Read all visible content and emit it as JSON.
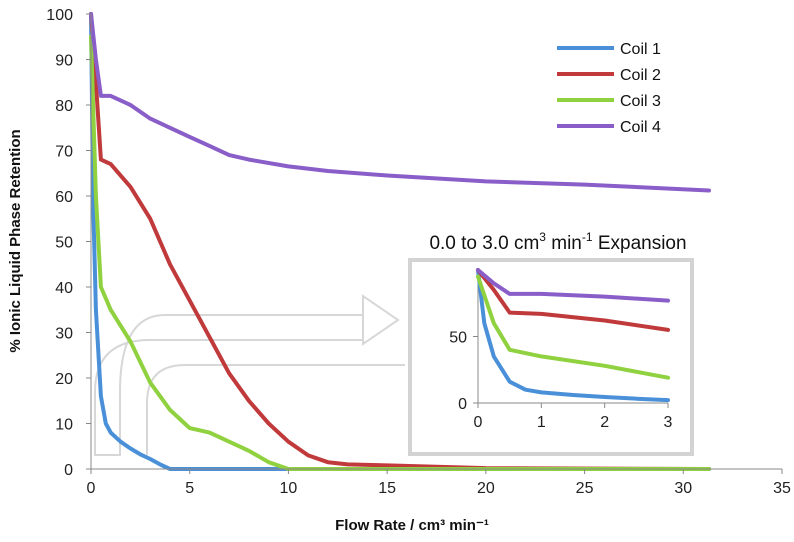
{
  "chart_data": {
    "type": "line",
    "title": "",
    "xlabel": "Flow Rate / cm³ min⁻¹",
    "ylabel": "% Ionic Liquid Phase Retention",
    "xlim": [
      0,
      35
    ],
    "ylim": [
      0,
      100
    ],
    "xticks": [
      "0",
      "5",
      "10",
      "15",
      "20",
      "25",
      "30",
      "35"
    ],
    "yticks": [
      "0",
      "10",
      "20",
      "30",
      "40",
      "50",
      "60",
      "70",
      "80",
      "90",
      "100"
    ],
    "legend_position": "top-right",
    "colors": {
      "Coil 1": "#4a90d9",
      "Coil 2": "#c0393b",
      "Coil 3": "#8fd13f",
      "Coil 4": "#8a5ec8"
    },
    "series": [
      {
        "name": "Coil 1",
        "x": [
          0,
          0.1,
          0.25,
          0.5,
          0.75,
          1,
          1.5,
          2,
          2.5,
          3,
          3.5,
          4,
          5,
          10,
          20,
          31.3
        ],
        "y": [
          100,
          60,
          35,
          16,
          10,
          8,
          6,
          4.5,
          3.2,
          2.2,
          1,
          0,
          0,
          0,
          0,
          0
        ]
      },
      {
        "name": "Coil 2",
        "x": [
          0,
          0.25,
          0.5,
          1,
          2,
          3,
          4,
          5,
          6,
          7,
          8,
          9,
          10,
          11,
          12,
          13,
          15,
          20,
          31.3
        ],
        "y": [
          100,
          85,
          68,
          67,
          62,
          55,
          45,
          37,
          29,
          21,
          15,
          10,
          6,
          3,
          1.5,
          1,
          0.8,
          0.2,
          0
        ]
      },
      {
        "name": "Coil 3",
        "x": [
          0,
          0.25,
          0.5,
          1,
          2,
          3,
          4,
          5,
          6,
          7,
          8,
          9,
          10,
          15,
          20,
          31.3
        ],
        "y": [
          95,
          60,
          40,
          35,
          28,
          19,
          13,
          9,
          8,
          6,
          4,
          1.5,
          0,
          0,
          0,
          0
        ]
      },
      {
        "name": "Coil 4",
        "x": [
          0,
          0.25,
          0.5,
          1,
          2,
          3,
          4,
          5,
          6,
          7,
          8,
          10,
          12,
          15,
          20,
          25,
          31.3
        ],
        "y": [
          100,
          90,
          82,
          82,
          80,
          77,
          75,
          73,
          71,
          69,
          68,
          66.5,
          65.5,
          64.5,
          63.2,
          62.5,
          61.2
        ]
      }
    ],
    "inset": {
      "title_main": "0.0 to 3.0 cm",
      "title_sup1": "3",
      "title_mid": " min",
      "title_sup2": "-1",
      "title_end": " Expansion",
      "xlim": [
        0,
        3
      ],
      "ylim": [
        0,
        100
      ],
      "xticks": [
        "0",
        "1",
        "2",
        "3"
      ],
      "yticks": [
        "0",
        "50"
      ]
    }
  }
}
